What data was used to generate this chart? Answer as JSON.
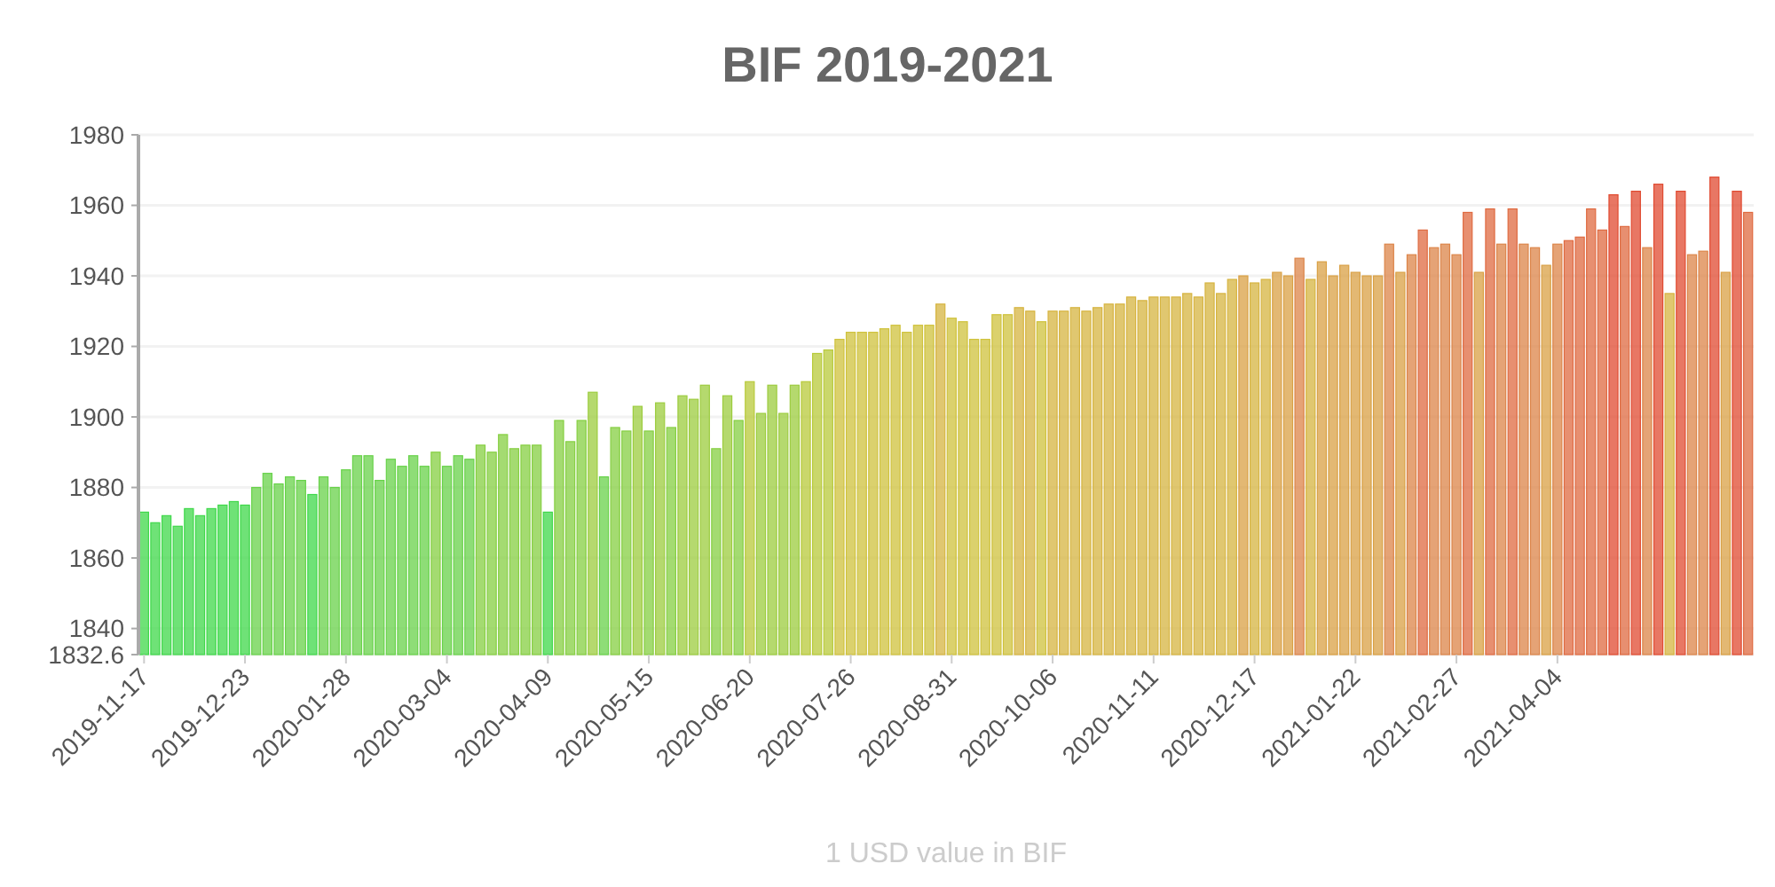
{
  "chart_data": {
    "type": "bar",
    "title": "BIF 2019-2021",
    "xlabel": "1 USD value in BIF",
    "x": [
      "2019-11-17",
      "2019-11-21",
      "2019-11-25",
      "2019-11-29",
      "2019-12-03",
      "2019-12-07",
      "2019-12-11",
      "2019-12-15",
      "2019-12-19",
      "2019-12-23",
      "2019-12-27",
      "2019-12-31",
      "2020-01-04",
      "2020-01-08",
      "2020-01-12",
      "2020-01-16",
      "2020-01-20",
      "2020-01-24",
      "2020-01-28",
      "2020-02-01",
      "2020-02-05",
      "2020-02-09",
      "2020-02-13",
      "2020-02-17",
      "2020-02-21",
      "2020-02-25",
      "2020-02-29",
      "2020-03-04",
      "2020-03-08",
      "2020-03-12",
      "2020-03-16",
      "2020-03-20",
      "2020-03-24",
      "2020-03-28",
      "2020-04-01",
      "2020-04-05",
      "2020-04-09",
      "2020-04-13",
      "2020-04-17",
      "2020-04-21",
      "2020-04-25",
      "2020-04-29",
      "2020-05-03",
      "2020-05-07",
      "2020-05-11",
      "2020-05-15",
      "2020-05-19",
      "2020-05-23",
      "2020-05-27",
      "2020-05-31",
      "2020-06-04",
      "2020-06-08",
      "2020-06-12",
      "2020-06-16",
      "2020-06-20",
      "2020-06-24",
      "2020-06-28",
      "2020-07-02",
      "2020-07-06",
      "2020-07-10",
      "2020-07-14",
      "2020-07-18",
      "2020-07-22",
      "2020-07-26",
      "2020-07-30",
      "2020-08-03",
      "2020-08-07",
      "2020-08-11",
      "2020-08-15",
      "2020-08-19",
      "2020-08-23",
      "2020-08-27",
      "2020-08-31",
      "2020-09-04",
      "2020-09-08",
      "2020-09-12",
      "2020-09-16",
      "2020-09-20",
      "2020-09-24",
      "2020-09-28",
      "2020-10-02",
      "2020-10-06",
      "2020-10-10",
      "2020-10-14",
      "2020-10-18",
      "2020-10-22",
      "2020-10-26",
      "2020-10-30",
      "2020-11-03",
      "2020-11-07",
      "2020-11-11",
      "2020-11-15",
      "2020-11-19",
      "2020-11-23",
      "2020-11-27",
      "2020-12-01",
      "2020-12-05",
      "2020-12-09",
      "2020-12-13",
      "2020-12-17",
      "2020-12-21",
      "2020-12-25",
      "2020-12-29",
      "2021-01-02",
      "2021-01-06",
      "2021-01-10",
      "2021-01-14",
      "2021-01-18",
      "2021-01-22",
      "2021-01-26",
      "2021-01-30",
      "2021-02-03",
      "2021-02-07",
      "2021-02-11",
      "2021-02-15",
      "2021-02-19",
      "2021-02-23",
      "2021-02-27",
      "2021-03-03",
      "2021-03-07",
      "2021-03-11",
      "2021-03-15",
      "2021-03-19",
      "2021-03-23",
      "2021-03-27",
      "2021-03-31",
      "2021-04-04",
      "2021-04-08",
      "2021-04-12",
      "2021-04-16",
      "2021-04-20",
      "2021-04-24",
      "2021-04-28",
      "2021-05-02",
      "2021-05-06",
      "2021-05-10",
      "2021-05-14",
      "2021-05-18",
      "2021-05-22",
      "2021-05-26",
      "2021-05-30",
      "2021-06-03",
      "2021-06-07",
      "2021-06-11"
    ],
    "values": [
      1873,
      1870,
      1872,
      1869,
      1874,
      1872,
      1874,
      1875,
      1876,
      1875,
      1880,
      1884,
      1881,
      1883,
      1882,
      1878,
      1883,
      1880,
      1885,
      1889,
      1889,
      1882,
      1888,
      1886,
      1889,
      1886,
      1890,
      1886,
      1889,
      1888,
      1892,
      1890,
      1895,
      1891,
      1892,
      1892,
      1873,
      1899,
      1893,
      1899,
      1907,
      1883,
      1897,
      1896,
      1903,
      1896,
      1904,
      1897,
      1906,
      1905,
      1909,
      1891,
      1906,
      1899,
      1910,
      1901,
      1909,
      1901,
      1909,
      1910,
      1918,
      1919,
      1922,
      1924,
      1924,
      1924,
      1925,
      1926,
      1924,
      1926,
      1926,
      1932,
      1928,
      1927,
      1922,
      1922,
      1929,
      1929,
      1931,
      1930,
      1927,
      1930,
      1930,
      1931,
      1930,
      1931,
      1932,
      1932,
      1934,
      1933,
      1934,
      1934,
      1934,
      1935,
      1934,
      1938,
      1935,
      1939,
      1940,
      1938,
      1939,
      1941,
      1940,
      1945,
      1939,
      1944,
      1940,
      1943,
      1941,
      1940,
      1940,
      1949,
      1941,
      1946,
      1953,
      1948,
      1949,
      1946,
      1958,
      1941,
      1959,
      1949,
      1959,
      1949,
      1948,
      1943,
      1949,
      1950,
      1951,
      1959,
      1953,
      1963,
      1954,
      1964,
      1948,
      1966,
      1935,
      1964,
      1946,
      1947,
      1968,
      1941,
      1964,
      1958
    ],
    "colors": [
      "#3fd84a",
      "#3fd84a",
      "#3fd84a",
      "#3fd84a",
      "#3fd84a",
      "#3fd84a",
      "#3fd84a",
      "#3fd84a",
      "#3fd84a",
      "#3fd84a",
      "#68d24a",
      "#68d24a",
      "#68d24a",
      "#68d24a",
      "#68d24a",
      "#3fd84a",
      "#68d24a",
      "#68d24a",
      "#68d24a",
      "#68d24a",
      "#68d24a",
      "#68d24a",
      "#68d24a",
      "#68d24a",
      "#68d24a",
      "#68d24a",
      "#86cf42",
      "#68d24a",
      "#68d24a",
      "#68d24a",
      "#86cf42",
      "#86cf42",
      "#86cf42",
      "#86cf42",
      "#86cf42",
      "#86cf42",
      "#3fd84a",
      "#86cf42",
      "#86cf42",
      "#86cf42",
      "#9ccc3e",
      "#68d24a",
      "#86cf42",
      "#86cf42",
      "#9ccc3e",
      "#86cf42",
      "#9ccc3e",
      "#86cf42",
      "#9ccc3e",
      "#9ccc3e",
      "#9ccc3e",
      "#86cf42",
      "#9ccc3e",
      "#86cf42",
      "#b8ca3a",
      "#9ccc3e",
      "#9ccc3e",
      "#9ccc3e",
      "#9ccc3e",
      "#b8ca3a",
      "#b8ca3a",
      "#b8ca3a",
      "#cfc23c",
      "#cfc23c",
      "#cfc23c",
      "#cfc23c",
      "#cfc23c",
      "#cfc23c",
      "#cfc23c",
      "#cfc23c",
      "#cfc23c",
      "#d6b440",
      "#cfc23c",
      "#cfc23c",
      "#cfc23c",
      "#cfc23c",
      "#cfc23c",
      "#cfc23c",
      "#d6b440",
      "#d6b440",
      "#cfc23c",
      "#d6b440",
      "#d6b440",
      "#d6b440",
      "#d6b440",
      "#d6b440",
      "#d6b440",
      "#d6b440",
      "#d6b440",
      "#d6b440",
      "#d6b440",
      "#d6b440",
      "#d6b440",
      "#d6b440",
      "#d6b440",
      "#d6b440",
      "#d6b440",
      "#d6b440",
      "#d9a044",
      "#d6b440",
      "#d6b440",
      "#d9a044",
      "#d9a044",
      "#dc8448",
      "#d6b440",
      "#d9a044",
      "#d9a044",
      "#d9a044",
      "#d9a044",
      "#d9a044",
      "#d9a044",
      "#dc8448",
      "#d9a044",
      "#dc8448",
      "#df6a40",
      "#dc8448",
      "#dc8448",
      "#dc8448",
      "#df6a40",
      "#d9a044",
      "#df6a40",
      "#dc8448",
      "#df6a40",
      "#dc8448",
      "#dc8448",
      "#d9a044",
      "#dc8448",
      "#df6a40",
      "#df6a40",
      "#df6a40",
      "#df6a40",
      "#e04a30",
      "#df6a40",
      "#e04a30",
      "#dc8448",
      "#e04a30",
      "#d6b440",
      "#e04a30",
      "#dc8448",
      "#dc8448",
      "#e04a30",
      "#d9a044",
      "#e04a30",
      "#df6a40"
    ],
    "xlim": [
      "2019-11-15",
      "2021-06-13"
    ],
    "xticks": [
      "2019-11-17",
      "2019-12-23",
      "2020-01-28",
      "2020-03-04",
      "2020-04-09",
      "2020-05-15",
      "2020-06-20",
      "2020-07-26",
      "2020-08-31",
      "2020-10-06",
      "2020-11-11",
      "2020-12-17",
      "2021-01-22",
      "2021-02-27",
      "2021-04-04"
    ],
    "ylim": [
      1832.6,
      1980
    ],
    "yticks": [
      1832.6,
      1840,
      1860,
      1880,
      1900,
      1920,
      1940,
      1960,
      1980
    ],
    "grid": "y"
  }
}
